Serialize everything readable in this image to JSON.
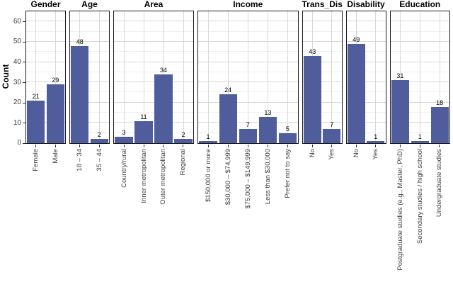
{
  "chart_data": {
    "type": "bar",
    "title": "",
    "ylabel": "Count",
    "xlabel": "",
    "ylim": [
      0,
      65
    ],
    "yticks": [
      0,
      10,
      20,
      30,
      40,
      50,
      60
    ],
    "yminor_step": 5,
    "grid": "major and minor horizontal gridlines, major vertical gridlines at category centers",
    "legend_position": "none",
    "bar_color": "#4f5d9c",
    "panel_border_color": "#1c1c1c",
    "facets": [
      {
        "title": "Gender",
        "categories": [
          "Female",
          "Male"
        ],
        "values": [
          21,
          29
        ]
      },
      {
        "title": "Age",
        "categories": [
          "18 – 34",
          "35 – 44"
        ],
        "values": [
          48,
          2
        ]
      },
      {
        "title": "Area",
        "categories": [
          "Country/rural",
          "Inner metropolitan",
          "Outer metropolitan",
          "Regional"
        ],
        "values": [
          3,
          11,
          34,
          2
        ]
      },
      {
        "title": "Income",
        "categories": [
          "$150,000 or more",
          "$30,000 – $74,999",
          "$75,000 – $149,999",
          "Less than $30,000",
          "Prefer not to say"
        ],
        "values": [
          1,
          24,
          7,
          13,
          5
        ]
      },
      {
        "title": "Trans_Dis",
        "categories": [
          "No",
          "Yes"
        ],
        "values": [
          43,
          7
        ]
      },
      {
        "title": "Disability",
        "categories": [
          "No",
          "Yes"
        ],
        "values": [
          49,
          1
        ]
      },
      {
        "title": "Education",
        "categories": [
          "Postgraduate studies (e.g., Master, PhD)",
          "Secondary studies / high school",
          "Undergraduate studies"
        ],
        "values": [
          31,
          1,
          18
        ]
      }
    ]
  }
}
